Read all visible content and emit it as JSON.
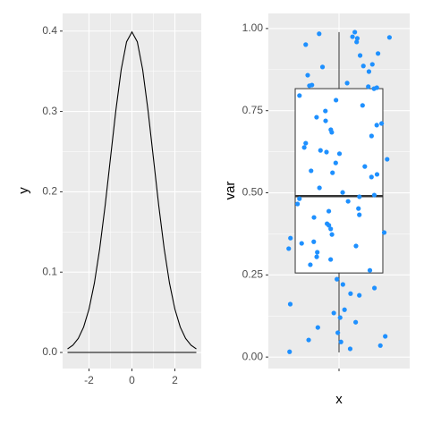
{
  "chart_data": [
    {
      "type": "line",
      "y_label": "y",
      "color": "#000000",
      "grid": true,
      "x": [
        -3,
        -2.75,
        -2.5,
        -2.25,
        -2,
        -1.75,
        -1.5,
        -1.25,
        -1,
        -0.75,
        -0.5,
        -0.25,
        0,
        0.25,
        0.5,
        0.75,
        1,
        1.25,
        1.5,
        1.75,
        2,
        2.25,
        2.5,
        2.75,
        3
      ],
      "values": [
        0.0044,
        0.0091,
        0.0175,
        0.0317,
        0.054,
        0.0863,
        0.1295,
        0.1826,
        0.242,
        0.3011,
        0.3521,
        0.3867,
        0.3989,
        0.3867,
        0.3521,
        0.3011,
        0.242,
        0.1826,
        0.1295,
        0.0863,
        0.054,
        0.0317,
        0.0175,
        0.0091,
        0.0044
      ],
      "xlim": [
        -3.23,
        3.23
      ],
      "xticks": [
        -2,
        0,
        2
      ],
      "ylim": [
        -0.02,
        0.422
      ],
      "yticks": [
        {
          "value": 0,
          "label": "0.0"
        },
        0.1,
        0.2,
        0.3,
        0.4
      ]
    },
    {
      "type": "box",
      "x_label": "x",
      "y_label": "var",
      "grid": true,
      "categories": [
        null
      ],
      "box": {
        "min": 0.014,
        "q1": 0.256,
        "median": 0.49,
        "q3": 0.817,
        "max": 0.989,
        "fill": "#ffffff",
        "color": "#333333"
      },
      "points": {
        "color": "#1e90ff",
        "values": [
          0.989,
          0.984,
          0.975,
          0.973,
          0.97,
          0.959,
          0.951,
          0.924,
          0.918,
          0.891,
          0.886,
          0.883,
          0.869,
          0.858,
          0.834,
          0.828,
          0.826,
          0.823,
          0.82,
          0.817,
          0.796,
          0.782,
          0.766,
          0.749,
          0.73,
          0.719,
          0.711,
          0.706,
          0.692,
          0.684,
          0.673,
          0.651,
          0.638,
          0.629,
          0.624,
          0.619,
          0.602,
          0.591,
          0.58,
          0.567,
          0.561,
          0.556,
          0.548,
          0.515,
          0.501,
          0.493,
          0.488,
          0.482,
          0.474,
          0.466,
          0.452,
          0.444,
          0.433,
          0.425,
          0.406,
          0.401,
          0.39,
          0.379,
          0.373,
          0.362,
          0.351,
          0.346,
          0.338,
          0.33,
          0.319,
          0.305,
          0.297,
          0.281,
          0.264,
          0.237,
          0.221,
          0.21,
          0.193,
          0.188,
          0.161,
          0.144,
          0.134,
          0.12,
          0.106,
          0.09,
          0.074,
          0.063,
          0.052,
          0.046,
          0.035,
          0.025,
          0.016
        ]
      },
      "ylim": [
        -0.035,
        1.046
      ],
      "yticks": [
        {
          "value": 0,
          "label": "0.00"
        },
        0.25,
        {
          "value": 0.5,
          "label": "0.50"
        },
        0.75,
        {
          "value": 1,
          "label": "1.00"
        }
      ]
    }
  ]
}
